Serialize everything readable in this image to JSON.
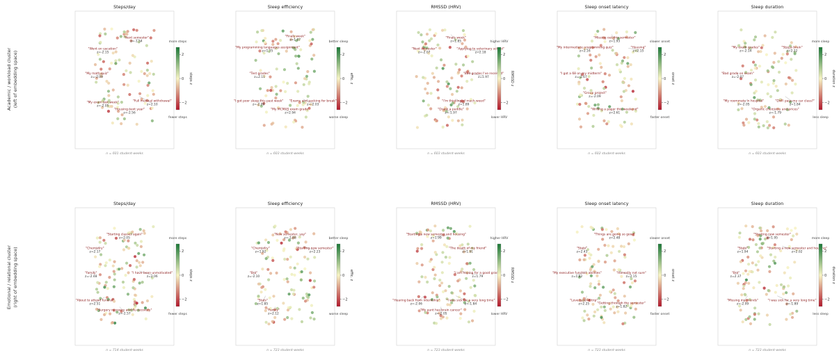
{
  "figure": {
    "row_labels": [
      [
        "Academic / workload cluster",
        "(left of embedding space)"
      ],
      [
        "Emotional / relational cluster",
        "(right of embedding space)"
      ]
    ]
  },
  "colors": {
    "low": "#b2182b",
    "mid": "#f7f4c4",
    "high": "#1b7837",
    "frame": "#d0d0d0"
  },
  "chart_data": [
    {
      "type": "scatter",
      "row": 0,
      "col": 0,
      "title": "Steps/day",
      "n_label": "n = 601 student-weeks",
      "cb_label": "steps z",
      "cb_top": "more steps",
      "cb_bottom": "fewer steps",
      "cb_ticks": [
        2,
        0,
        -2
      ],
      "points": 96,
      "annotations": [
        {
          "quote": "\"Next semester\"",
          "z": "z=-1.54",
          "ax": 0.65,
          "ay": 0.2,
          "tx": 0.62,
          "ty": 0.2
        },
        {
          "quote": "\"Went on vacation\"",
          "z": "z=-2.15",
          "ax": 0.3,
          "ay": 0.28,
          "tx": 0.28,
          "ty": 0.28
        },
        {
          "quote": "\"My math quiz\"",
          "z": "z=-2.09",
          "ax": 0.28,
          "ay": 0.45,
          "tx": 0.22,
          "ty": 0.46
        },
        {
          "quote": "\"Full medical withdrawal\"",
          "z": "z=2.10",
          "ax": 0.65,
          "ay": 0.62,
          "tx": 0.78,
          "ty": 0.66
        },
        {
          "quote": "\"My exam last week\"",
          "z": "z=-2.05",
          "ax": 0.3,
          "ay": 0.65,
          "tx": 0.28,
          "ty": 0.67
        },
        {
          "quote": "\"Housing next year\"",
          "z": "z=-2.56",
          "ax": 0.55,
          "ay": 0.7,
          "tx": 0.55,
          "ty": 0.72
        }
      ]
    },
    {
      "type": "scatter",
      "row": 0,
      "col": 1,
      "title": "Sleep efficiency",
      "n_label": "n = 603 student-weeks",
      "cb_label": "effic. z",
      "cb_top": "better sleep",
      "cb_bottom": "worse sleep",
      "cb_ticks": [
        2,
        0,
        -2
      ],
      "points": 96,
      "annotations": [
        {
          "quote": "\"Finals week\"",
          "z": "z=1.87",
          "ax": 0.58,
          "ay": 0.17,
          "tx": 0.6,
          "ty": 0.19
        },
        {
          "quote": "\"My programming languages assignment\"",
          "z": "z=1.75",
          "ax": 0.35,
          "ay": 0.27,
          "tx": 0.32,
          "ty": 0.27
        },
        {
          "quote": "\"Test grades\"",
          "z": "z=2.11",
          "ax": 0.25,
          "ay": 0.45,
          "tx": 0.24,
          "ty": 0.46
        },
        {
          "quote": "\"I got poor sleep this past week\"",
          "z": "z=-2.00",
          "ax": 0.25,
          "ay": 0.64,
          "tx": 0.23,
          "ty": 0.66
        },
        {
          "quote": "\"Exams and packing for break\"",
          "z": "z=-2.03",
          "ax": 0.68,
          "ay": 0.64,
          "tx": 0.78,
          "ty": 0.66
        },
        {
          "quote": "\"My MCMAS exam grade\"",
          "z": "z=2.94",
          "ax": 0.5,
          "ay": 0.72,
          "tx": 0.55,
          "ty": 0.72
        }
      ]
    },
    {
      "type": "scatter",
      "row": 0,
      "col": 2,
      "title": "RMSSD (HRV)",
      "n_label": "n = 603 student-weeks",
      "cb_label": "RMSSD z",
      "cb_top": "higher HRV",
      "cb_bottom": "lower HRV",
      "cb_ticks": [
        2,
        0,
        -2
      ],
      "points": 96,
      "annotations": [
        {
          "quote": "\"Finals week\"",
          "z": "z=1.85",
          "ax": 0.55,
          "ay": 0.17,
          "tx": 0.6,
          "ty": 0.2
        },
        {
          "quote": "\"Next semester\"",
          "z": "z=-2.07",
          "ax": 0.3,
          "ay": 0.28,
          "tx": 0.28,
          "ty": 0.28
        },
        {
          "quote": "\"Applying to veterinary school\"",
          "z": "z=2.18",
          "ax": 0.72,
          "ay": 0.28,
          "tx": 0.85,
          "ty": 0.28
        },
        {
          "quote": "\"Bad grades I've received\"",
          "z": "z=1.97",
          "ax": 0.72,
          "ay": 0.45,
          "tx": 0.88,
          "ty": 0.46
        },
        {
          "quote": "\"I'm thinking of much weed\"",
          "z": "z=1.89",
          "ax": 0.6,
          "ay": 0.64,
          "tx": 0.68,
          "ty": 0.66
        },
        {
          "quote": "\"Drank a puddle\"",
          "z": "z=-1.97",
          "ax": 0.5,
          "ay": 0.72,
          "tx": 0.55,
          "ty": 0.72
        }
      ]
    },
    {
      "type": "scatter",
      "row": 0,
      "col": 3,
      "title": "Sleep onset latency",
      "n_label": "n = 602 student-weeks",
      "cb_label": "onset z",
      "cb_top": "slower onset",
      "cb_bottom": "faster onset",
      "cb_ticks": [
        2,
        0,
        -2
      ],
      "points": 96,
      "annotations": [
        {
          "quote": "\"Missing out this semester\"",
          "z": "z=1.93",
          "ax": 0.55,
          "ay": 0.17,
          "tx": 0.58,
          "ty": 0.2
        },
        {
          "quote": "\"My intermediate programming quiz\"",
          "z": "z=2.16",
          "ax": 0.32,
          "ay": 0.27,
          "tx": 0.28,
          "ty": 0.27
        },
        {
          "quote": "\"Housing\"",
          "z": "z=2.15",
          "ax": 0.72,
          "ay": 0.27,
          "tx": 0.82,
          "ty": 0.27
        },
        {
          "quote": "\"I got a 68 on my midterm\"",
          "z": "z=-2.67",
          "ax": 0.25,
          "ay": 0.45,
          "tx": 0.24,
          "ty": 0.46
        },
        {
          "quote": "\"Group project\"",
          "z": "z=-2.09",
          "ax": 0.4,
          "ay": 0.6,
          "tx": 0.38,
          "ty": 0.6
        },
        {
          "quote": "\"Writing a paper this weekend\"",
          "z": "z=2.61",
          "ax": 0.55,
          "ay": 0.72,
          "tx": 0.58,
          "ty": 0.72
        }
      ]
    },
    {
      "type": "scatter",
      "row": 0,
      "col": 4,
      "title": "Sleep duration",
      "n_label": "n = 603 student-weeks",
      "cb_label": "duration z",
      "cb_top": "more sleep",
      "cb_bottom": "less sleep",
      "cb_ticks": [
        2,
        0,
        -2
      ],
      "points": 96,
      "annotations": [
        {
          "quote": "\"My exam grades\"",
          "z": "z=-2.14",
          "ax": 0.28,
          "ay": 0.27,
          "tx": 0.28,
          "ty": 0.27
        },
        {
          "quote": "\"Stress brain\"",
          "z": "z=2.22",
          "ax": 0.68,
          "ay": 0.27,
          "tx": 0.75,
          "ty": 0.27
        },
        {
          "quote": "\"Bad grade on exam\"",
          "z": "z=-2.07",
          "ax": 0.2,
          "ay": 0.45,
          "tx": 0.2,
          "ty": 0.46
        },
        {
          "quote": "\"My roommate in hospital\"",
          "z": "z=-2.05",
          "ax": 0.3,
          "ay": 0.64,
          "tx": 0.26,
          "ty": 0.66
        },
        {
          "quote": "\"Did I pass my car class?\"",
          "z": "z=1.84",
          "ax": 0.68,
          "ay": 0.62,
          "tx": 0.78,
          "ty": 0.66
        },
        {
          "quote": "\"Organic chemistry and prices\"",
          "z": "z=-1.79",
          "ax": 0.55,
          "ay": 0.72,
          "tx": 0.58,
          "ty": 0.72
        }
      ]
    },
    {
      "type": "scatter",
      "row": 1,
      "col": 0,
      "title": "Steps/day",
      "n_label": "n = 714 student-weeks",
      "cb_label": "steps z",
      "cb_top": "more steps",
      "cb_bottom": "fewer steps",
      "cb_ticks": [
        2,
        0,
        -2
      ],
      "points": 110,
      "annotations": [
        {
          "quote": "\"Starting classes again\"",
          "z": "z=2.05",
          "ax": 0.5,
          "ay": 0.2,
          "tx": 0.5,
          "ty": 0.2
        },
        {
          "quote": "\"Chemistry\"",
          "z": "z=2.17",
          "ax": 0.25,
          "ay": 0.28,
          "tx": 0.2,
          "ty": 0.3
        },
        {
          "quote": "\"family\"",
          "z": "z=-2.48",
          "ax": 0.2,
          "ay": 0.46,
          "tx": 0.16,
          "ty": 0.48
        },
        {
          "quote": "\"I have been unmotivated\"",
          "z": "z=2.06",
          "ax": 0.65,
          "ay": 0.46,
          "tx": 0.78,
          "ty": 0.48
        },
        {
          "quote": "\"About to attend funeral\"",
          "z": "z=2.51",
          "ax": 0.3,
          "ay": 0.65,
          "tx": 0.2,
          "ty": 0.68
        },
        {
          "quote": "\"Surgery recovery and flu recovery\"",
          "z": "z=-2.57",
          "ax": 0.45,
          "ay": 0.72,
          "tx": 0.5,
          "ty": 0.75
        }
      ]
    },
    {
      "type": "scatter",
      "row": 1,
      "col": 1,
      "title": "Sleep efficiency",
      "n_label": "n = 723 student-weeks",
      "cb_label": "effic. z",
      "cb_top": "better sleep",
      "cb_bottom": "worse sleep",
      "cb_ticks": [
        2,
        0,
        -2
      ],
      "points": 110,
      "annotations": [
        {
          "quote": "\"New semester, yay\"",
          "z": "z=-1.88",
          "ax": 0.55,
          "ay": 0.2,
          "tx": 0.55,
          "ty": 0.2
        },
        {
          "quote": "\"Chemistry\"",
          "z": "z=1.92",
          "ax": 0.3,
          "ay": 0.28,
          "tx": 0.25,
          "ty": 0.3
        },
        {
          "quote": "\"Starting new semester\"",
          "z": "z=2.23",
          "ax": 0.68,
          "ay": 0.28,
          "tx": 0.8,
          "ty": 0.3
        },
        {
          "quote": "\"Bro\"",
          "z": "z=-2.10",
          "ax": 0.2,
          "ay": 0.46,
          "tx": 0.18,
          "ty": 0.48
        },
        {
          "quote": "\"Stats\"",
          "z": "z=1.85",
          "ax": 0.3,
          "ay": 0.64,
          "tx": 0.27,
          "ty": 0.68
        },
        {
          "quote": "\"Family\"",
          "z": "z=2.12",
          "ax": 0.4,
          "ay": 0.72,
          "tx": 0.38,
          "ty": 0.75
        }
      ]
    },
    {
      "type": "scatter",
      "row": 1,
      "col": 2,
      "title": "RMSSD (HRV)",
      "n_label": "n = 723 student-weeks",
      "cb_label": "RMSSD z",
      "cb_top": "higher HRV",
      "cb_bottom": "lower HRV",
      "cb_ticks": [
        2,
        0,
        -2
      ],
      "points": 110,
      "annotations": [
        {
          "quote": "\"Starting a new semester and housing\"",
          "z": "z=1.99",
          "ax": 0.5,
          "ay": 0.2,
          "tx": 0.4,
          "ty": 0.2
        },
        {
          "quote": "\"The death of my friend\"",
          "z": "z=1.91",
          "ax": 0.65,
          "ay": 0.3,
          "tx": 0.72,
          "ty": 0.3
        },
        {
          "quote": "\"I am hoping for a good grade\"",
          "z": "z=1.79",
          "ax": 0.65,
          "ay": 0.46,
          "tx": 0.82,
          "ty": 0.48
        },
        {
          "quote": "\"Hearing back from internship\"",
          "z": "z=-2.06",
          "ax": 0.28,
          "ay": 0.64,
          "tx": 0.2,
          "ty": 0.68
        },
        {
          "quote": "\"I was sick for a very long time\"",
          "z": "z=-1.84",
          "ax": 0.6,
          "ay": 0.64,
          "tx": 0.75,
          "ty": 0.68
        },
        {
          "quote": "\"My aunt has brain cancer\"",
          "z": "z=-2.05",
          "ax": 0.45,
          "ay": 0.72,
          "tx": 0.45,
          "ty": 0.75
        }
      ]
    },
    {
      "type": "scatter",
      "row": 1,
      "col": 3,
      "title": "Sleep onset latency",
      "n_label": "n = 723 student-weeks",
      "cb_label": "onset z",
      "cb_top": "slower onset",
      "cb_bottom": "faster onset",
      "cb_ticks": [
        2,
        0,
        -2
      ],
      "points": 110,
      "annotations": [
        {
          "quote": "\"Things are going so good\"",
          "z": "z=2.48",
          "ax": 0.55,
          "ay": 0.2,
          "tx": 0.58,
          "ty": 0.2
        },
        {
          "quote": "\"Stats\"",
          "z": "z=2.43",
          "ax": 0.3,
          "ay": 0.28,
          "tx": 0.25,
          "ty": 0.3
        },
        {
          "quote": "\"My executive function abilities\"",
          "z": "z=1.82",
          "ax": 0.3,
          "ay": 0.46,
          "tx": 0.2,
          "ty": 0.48
        },
        {
          "quote": "\"Honestly not sure\"",
          "z": "z=2.15",
          "ax": 0.62,
          "ay": 0.46,
          "tx": 0.75,
          "ty": 0.48
        },
        {
          "quote": "\"Love type of trip\"",
          "z": "z=2.25",
          "ax": 0.3,
          "ay": 0.64,
          "tx": 0.27,
          "ty": 0.68
        },
        {
          "quote": "\"Getting through the semester\"",
          "z": "z=1.82",
          "ax": 0.6,
          "ay": 0.68,
          "tx": 0.65,
          "ty": 0.7
        }
      ]
    },
    {
      "type": "scatter",
      "row": 1,
      "col": 4,
      "title": "Sleep duration",
      "n_label": "n = 723 student-weeks",
      "cb_label": "duration z",
      "cb_top": "more sleep",
      "cb_bottom": "less sleep",
      "cb_ticks": [
        2,
        0,
        -2
      ],
      "points": 110,
      "annotations": [
        {
          "quote": "\"Starting new semester\"",
          "z": "z=1.95",
          "ax": 0.5,
          "ay": 0.2,
          "tx": 0.55,
          "ty": 0.2
        },
        {
          "quote": "\"Stats\"",
          "z": "z=1.94",
          "ax": 0.3,
          "ay": 0.28,
          "tx": 0.25,
          "ty": 0.3
        },
        {
          "quote": "\"Starting a new semester and housing\"",
          "z": "z=2.02",
          "ax": 0.65,
          "ay": 0.28,
          "tx": 0.8,
          "ty": 0.3
        },
        {
          "quote": "\"Bro\"",
          "z": "z=2.37",
          "ax": 0.2,
          "ay": 0.46,
          "tx": 0.18,
          "ty": 0.48
        },
        {
          "quote": "\"Missing my friends\"",
          "z": "z=-2.09",
          "ax": 0.3,
          "ay": 0.64,
          "tx": 0.25,
          "ty": 0.68
        },
        {
          "quote": "\"I was sick for a very long time\"",
          "z": "z=-1.89",
          "ax": 0.6,
          "ay": 0.64,
          "tx": 0.75,
          "ty": 0.68
        }
      ]
    }
  ]
}
